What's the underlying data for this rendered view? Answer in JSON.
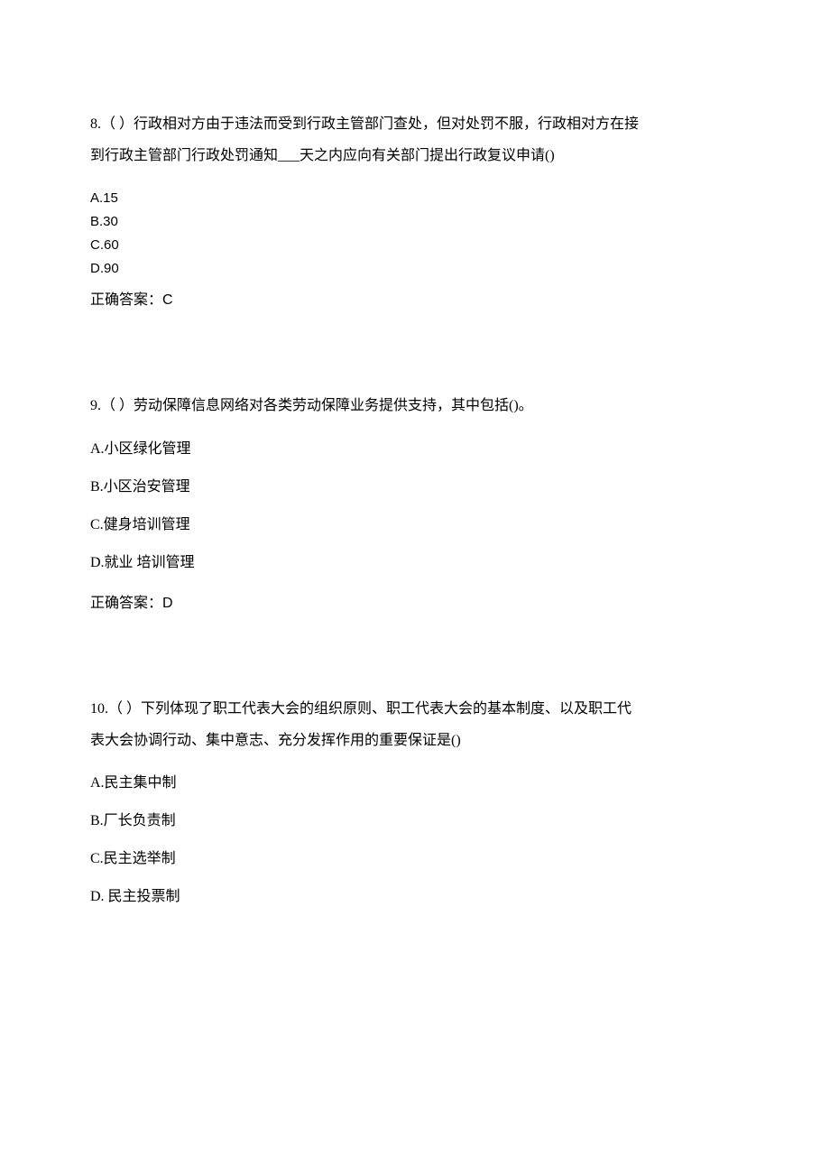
{
  "questions": [
    {
      "number": "8.",
      "marker": "（ ）",
      "text_line1": "行政相对方由于违法而受到行政主管部门查处，但对处罚不服，行政相对方在接",
      "text_line2": "到行政主管部门行政处罚通知___天之内应向有关部门提出行政复议申请()",
      "options": [
        "A.15",
        "B.30",
        "C.60",
        "D.90"
      ],
      "answer_label": "正确答案：",
      "answer_value": "C",
      "compact": true
    },
    {
      "number": "9.",
      "marker": "（ ）",
      "text_line1": "劳动保障信息网络对各类劳动保障业务提供支持，其中包括()。",
      "text_line2": "",
      "options": [
        "A.小区绿化管理",
        "B.小区治安管理",
        "C.健身培训管理",
        "D.就业  培训管理"
      ],
      "answer_label": "正确答案：",
      "answer_value": "D",
      "compact": false
    },
    {
      "number": "10.",
      "marker": "（ ）",
      "text_line1": "下列体现了职工代表大会的组织原则、职工代表大会的基本制度、以及职工代",
      "text_line2": "表大会协调行动、集中意志、充分发挥作用的重要保证是()",
      "options": [
        "A.民主集中制",
        "B.厂长负责制",
        "C.民主选举制",
        "D.   民主投票制"
      ],
      "answer_label": "",
      "answer_value": "",
      "compact": false
    }
  ]
}
